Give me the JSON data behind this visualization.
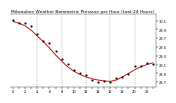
{
  "title": "Milwaukee Weather Barometric Pressure per Hour (Last 24 Hours)",
  "hours": [
    0,
    1,
    2,
    3,
    4,
    5,
    6,
    7,
    8,
    9,
    10,
    11,
    12,
    13,
    14,
    15,
    16,
    17,
    18,
    19,
    20,
    21,
    22,
    23
  ],
  "pressure_line": [
    30.08,
    30.04,
    29.98,
    29.88,
    29.75,
    29.62,
    29.48,
    29.32,
    29.18,
    29.05,
    28.95,
    28.88,
    28.82,
    28.78,
    28.75,
    28.73,
    28.72,
    28.75,
    28.82,
    28.9,
    28.98,
    29.05,
    29.1,
    29.14
  ],
  "pressure_dots": [
    30.1,
    30.06,
    30.02,
    29.92,
    29.8,
    29.65,
    29.52,
    29.38,
    29.24,
    29.1,
    29.0,
    28.93,
    28.86,
    28.82,
    28.78,
    28.76,
    28.74,
    28.78,
    28.86,
    28.94,
    29.02,
    29.08,
    29.13,
    29.16
  ],
  "noise_scale": 0.04,
  "noise_seed": 42,
  "line_color": "#cc0000",
  "dot_color": "#111111",
  "bg_color": "#ffffff",
  "grid_color": "#888888",
  "grid_x_positions": [
    4,
    8,
    12,
    16,
    20
  ],
  "ylim_min": 28.6,
  "ylim_max": 30.25,
  "yticks": [
    28.7,
    28.9,
    29.1,
    29.3,
    29.5,
    29.7,
    29.9,
    30.1
  ],
  "title_fontsize": 3.2,
  "tick_fontsize": 2.6,
  "line_width": 0.65,
  "dot_size": 2.5,
  "xlim_min": -0.5,
  "xlim_max": 23.5
}
